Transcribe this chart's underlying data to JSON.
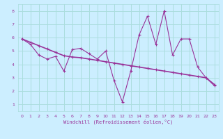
{
  "xlabel": "Windchill (Refroidissement éolien,°C)",
  "bg_color": "#cceeff",
  "grid_color": "#aadddd",
  "line_color": "#993399",
  "xlim": [
    -0.5,
    23.5
  ],
  "ylim": [
    0.5,
    8.5
  ],
  "xticks": [
    0,
    1,
    2,
    3,
    4,
    5,
    6,
    7,
    8,
    9,
    10,
    11,
    12,
    13,
    14,
    15,
    16,
    17,
    18,
    19,
    20,
    21,
    22,
    23
  ],
  "yticks": [
    1,
    2,
    3,
    4,
    5,
    6,
    7,
    8
  ],
  "data_x": [
    0,
    1,
    2,
    3,
    4,
    5,
    6,
    7,
    8,
    9,
    10,
    11,
    12,
    13,
    14,
    15,
    16,
    17,
    18,
    19,
    20,
    21,
    22,
    23
  ],
  "data_y1": [
    5.9,
    5.5,
    4.7,
    4.4,
    4.6,
    3.5,
    5.1,
    5.2,
    4.8,
    4.4,
    5.0,
    2.8,
    1.2,
    3.5,
    6.2,
    7.6,
    5.5,
    8.0,
    4.7,
    5.9,
    5.9,
    3.8,
    3.0,
    2.4
  ],
  "data_y2": [
    5.9,
    5.65,
    5.4,
    5.15,
    4.9,
    4.65,
    4.55,
    4.5,
    4.4,
    4.3,
    4.2,
    4.1,
    4.0,
    3.9,
    3.8,
    3.7,
    3.6,
    3.5,
    3.4,
    3.3,
    3.2,
    3.1,
    3.0,
    2.5
  ]
}
